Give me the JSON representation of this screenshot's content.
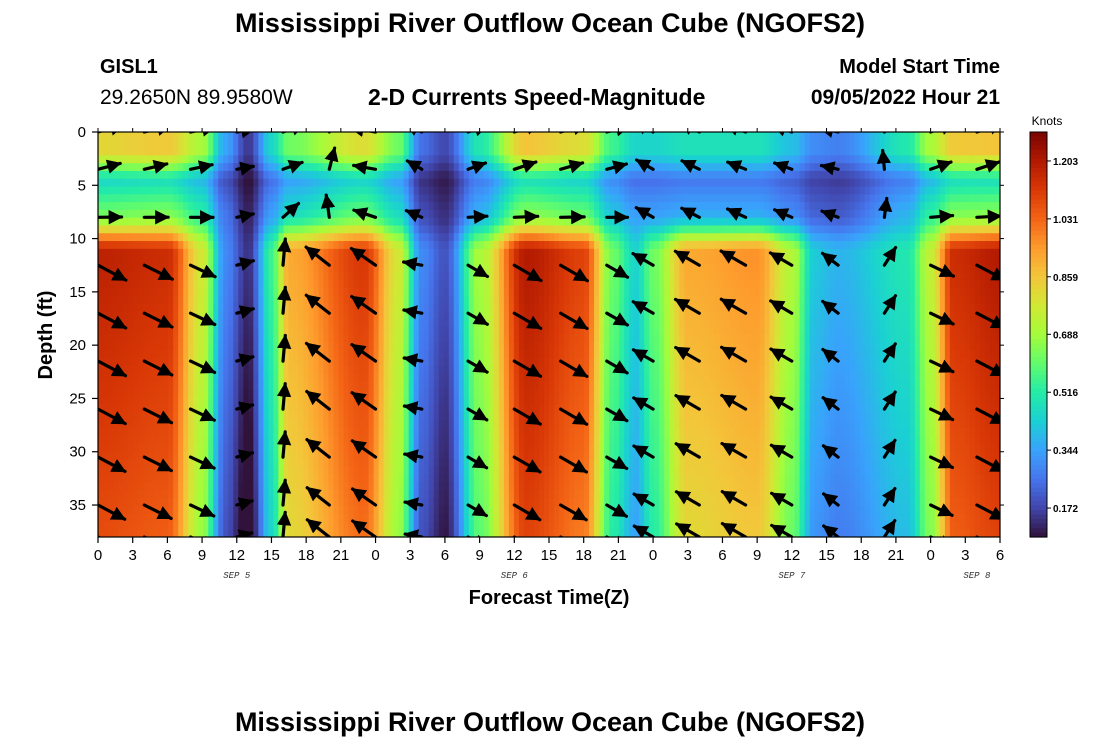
{
  "header": {
    "title": "Mississippi River Outflow Ocean Cube (NGOFS2)",
    "station": "GISL1",
    "coordinates": "29.2650N  89.9580W",
    "subtitle": "2-D Currents Speed-Magnitude",
    "model_start_label": "Model Start Time",
    "model_start_value": "09/05/2022 Hour 21"
  },
  "footer": {
    "title": "Mississippi River Outflow Ocean Cube (NGOFS2)"
  },
  "chart_data": {
    "type": "heatmap",
    "xlabel": "Forecast Time(Z)",
    "ylabel": "Depth (ft)",
    "x_range_hours": [
      0,
      78
    ],
    "x_tick_labels": [
      "0",
      "3",
      "6",
      "9",
      "12",
      "15",
      "18",
      "21",
      "0",
      "3",
      "6",
      "9",
      "12",
      "15",
      "18",
      "21",
      "0",
      "3",
      "6",
      "9",
      "12",
      "15",
      "18",
      "21",
      "0",
      "3",
      "6"
    ],
    "date_labels": [
      {
        "label": "SEP 5",
        "hour": 12
      },
      {
        "label": "SEP 6",
        "hour": 36
      },
      {
        "label": "SEP 7",
        "hour": 60
      },
      {
        "label": "SEP 8",
        "hour": 76
      }
    ],
    "y_range_ft": [
      0,
      38
    ],
    "y_ticks": [
      0,
      5,
      10,
      15,
      20,
      25,
      30,
      35
    ],
    "colorbar": {
      "label": "Knots",
      "range": [
        0.086,
        1.289
      ],
      "ticks": [
        "1.203",
        "1.031",
        "0.859",
        "0.688",
        "0.516",
        "0.344",
        "0.172"
      ],
      "tick_values": [
        1.203,
        1.031,
        0.859,
        0.688,
        0.516,
        0.344,
        0.172
      ],
      "colormap": [
        "#30123b",
        "#4145ab",
        "#4675ed",
        "#39a2fc",
        "#1bcfd4",
        "#24eca6",
        "#61fc6c",
        "#a4fc3b",
        "#d1e834",
        "#f3c63a",
        "#fe9b2d",
        "#f36315",
        "#d93806",
        "#b11901",
        "#7a0402"
      ]
    },
    "speed_by_hour": [
      {
        "hour": 0,
        "deep": 1.18,
        "top": 0.82
      },
      {
        "hour": 6,
        "deep": 1.15,
        "top": 0.85
      },
      {
        "hour": 9,
        "deep": 0.78,
        "top": 0.7
      },
      {
        "hour": 11,
        "deep": 0.3,
        "top": 0.35
      },
      {
        "hour": 13,
        "deep": 0.14,
        "top": 0.15
      },
      {
        "hour": 15,
        "deep": 0.55,
        "top": 0.45
      },
      {
        "hour": 16.5,
        "deep": 0.92,
        "top": 0.62
      },
      {
        "hour": 23,
        "deep": 1.12,
        "top": 0.8
      },
      {
        "hour": 26,
        "deep": 0.78,
        "top": 0.62
      },
      {
        "hour": 28,
        "deep": 0.3,
        "top": 0.25
      },
      {
        "hour": 30,
        "deep": 0.2,
        "top": 0.18
      },
      {
        "hour": 33,
        "deep": 0.7,
        "top": 0.5
      },
      {
        "hour": 37,
        "deep": 1.2,
        "top": 0.86
      },
      {
        "hour": 42,
        "deep": 1.1,
        "top": 0.8
      },
      {
        "hour": 44.5,
        "deep": 0.62,
        "top": 0.55
      },
      {
        "hour": 46.5,
        "deep": 0.45,
        "top": 0.45
      },
      {
        "hour": 48,
        "deep": 0.62,
        "top": 0.45
      },
      {
        "hour": 51,
        "deep": 0.92,
        "top": 0.48
      },
      {
        "hour": 57,
        "deep": 0.96,
        "top": 0.48
      },
      {
        "hour": 60,
        "deep": 0.72,
        "top": 0.4
      },
      {
        "hour": 62,
        "deep": 0.42,
        "top": 0.3
      },
      {
        "hour": 64,
        "deep": 0.38,
        "top": 0.28
      },
      {
        "hour": 70,
        "deep": 0.5,
        "top": 0.5
      },
      {
        "hour": 72,
        "deep": 0.75,
        "top": 0.7
      },
      {
        "hour": 74,
        "deep": 1.15,
        "top": 0.85
      },
      {
        "hour": 78,
        "deep": 1.2,
        "top": 0.86
      }
    ],
    "vectors": {
      "hours": [
        0,
        4,
        8,
        12,
        16,
        20,
        24,
        28,
        32,
        36,
        40,
        44,
        48,
        52,
        56,
        60,
        64,
        68,
        72,
        76
      ],
      "depths_ft": [
        0,
        3.5,
        8,
        12.5,
        17,
        21.5,
        26,
        30.5,
        35,
        38
      ],
      "direction_deg_by_hour": [
        {
          "hour": 0,
          "surface": 15,
          "deep": -28
        },
        {
          "hour": 8,
          "surface": 12,
          "deep": -25
        },
        {
          "hour": 12,
          "surface": 10,
          "deep": 15
        },
        {
          "hour": 15,
          "surface": 25,
          "deep": 30
        },
        {
          "hour": 17,
          "surface": 15,
          "deep": 140
        },
        {
          "hour": 24,
          "surface": 170,
          "deep": 145
        },
        {
          "hour": 28,
          "surface": 150,
          "deep": 170
        },
        {
          "hour": 30,
          "surface": 120,
          "deep": 120
        },
        {
          "hour": 32,
          "surface": 20,
          "deep": -30
        },
        {
          "hour": 44,
          "surface": 15,
          "deep": -30
        },
        {
          "hour": 46,
          "surface": 150,
          "deep": 150
        },
        {
          "hour": 60,
          "surface": 160,
          "deep": 150
        },
        {
          "hour": 66,
          "surface": 170,
          "deep": 140
        },
        {
          "hour": 70,
          "surface": 20,
          "deep": -25
        },
        {
          "hour": 78,
          "surface": 18,
          "deep": -28
        }
      ]
    },
    "grid": false,
    "legend": "colorbar-right"
  }
}
